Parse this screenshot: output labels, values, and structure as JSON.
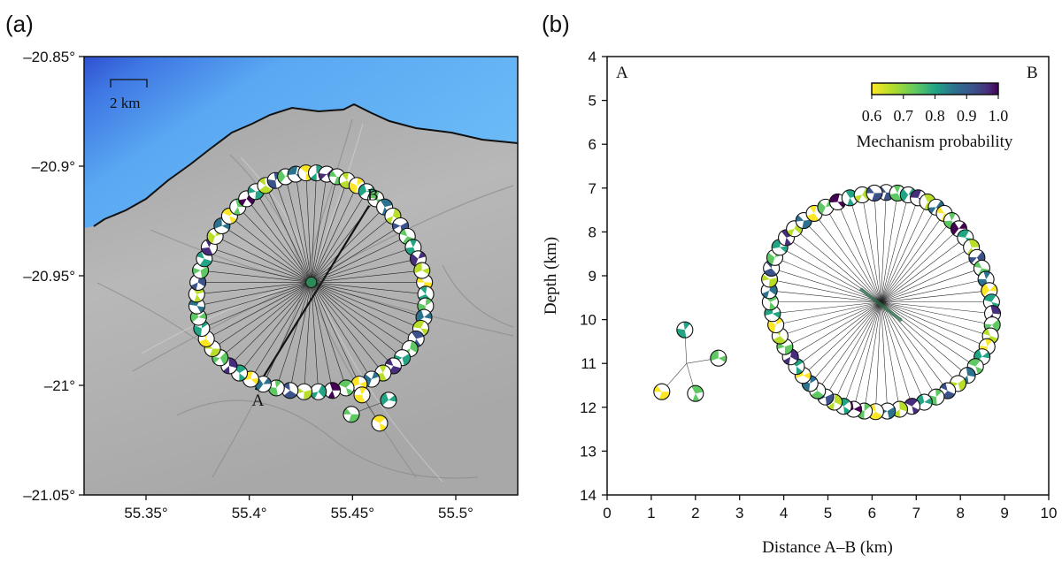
{
  "chart_data": [
    {
      "type": "map",
      "panel_label": "(a)",
      "xlim": [
        55.32,
        55.53
      ],
      "ylim": [
        -21.05,
        -20.85
      ],
      "x_ticks": [
        55.35,
        55.4,
        55.45,
        55.5
      ],
      "x_tick_labels": [
        "55.35°",
        "55.4°",
        "55.45°",
        "55.5°"
      ],
      "y_ticks": [
        -20.85,
        -20.9,
        -20.95,
        -21.0,
        -21.05
      ],
      "y_tick_labels": [
        "–20.85°",
        "–20.9°",
        "–20.95°",
        "–21°",
        "–21.05°"
      ],
      "scale_bar_label": "2 km",
      "profile": {
        "start_label": "A",
        "end_label": "B",
        "start": [
          55.403,
          -21.002
        ],
        "end": [
          55.458,
          -20.918
        ]
      },
      "cluster_center": [
        55.43,
        -20.953
      ],
      "secondary_cluster_center": [
        55.458,
        -21.01
      ],
      "colors": {
        "sea_deep": "#2f55d4",
        "sea_light": "#63b5f6",
        "land": "#b4b4b4",
        "coast": "#111111"
      }
    },
    {
      "type": "scatter",
      "panel_label": "(b)",
      "xlabel": "Distance A–B (km)",
      "ylabel": "Depth (km)",
      "xlim": [
        0,
        10
      ],
      "ylim": [
        14,
        4
      ],
      "x_ticks": [
        0,
        1,
        2,
        3,
        4,
        5,
        6,
        7,
        8,
        9,
        10
      ],
      "y_ticks": [
        4,
        5,
        6,
        7,
        8,
        9,
        10,
        11,
        12,
        13,
        14
      ],
      "corner_labels": {
        "left": "A",
        "right": "B"
      },
      "cluster_center": [
        6.2,
        9.6
      ],
      "secondary_cluster_center": [
        1.8,
        11.0
      ],
      "colorbar": {
        "label": "Mechanism probability",
        "range": [
          0.6,
          1.0
        ],
        "ticks": [
          "0.6",
          "0.7",
          "0.8",
          "0.9",
          "1.0"
        ],
        "colors": [
          "#fde725",
          "#b8de29",
          "#5ec962",
          "#21a585",
          "#2c728e",
          "#3b528b",
          "#472d7b",
          "#440154"
        ]
      }
    }
  ]
}
